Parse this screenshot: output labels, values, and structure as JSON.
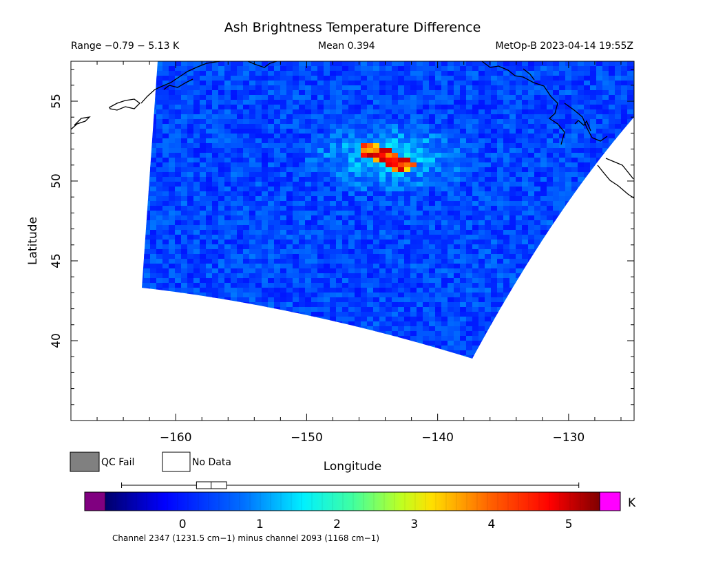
{
  "header": {
    "title": "Ash Brightness Temperature Difference",
    "range": "Range −0.79 − 5.13 K",
    "mean": "Mean 0.394",
    "satellite_time": "MetOp-B 2023-04-14 19:55Z"
  },
  "chart_data": {
    "type": "heatmap",
    "title": "Ash Brightness Temperature Difference",
    "xlabel": "Longitude",
    "ylabel": "Latitude",
    "xlim": [
      -168,
      -125
    ],
    "ylim": [
      35,
      57.5
    ],
    "x_ticks": [
      -160,
      -150,
      -140,
      -130
    ],
    "x_tick_labels": [
      "−160",
      "−150",
      "−140",
      "−130"
    ],
    "y_ticks": [
      40,
      45,
      50,
      55
    ],
    "y_tick_labels": [
      "40",
      "45",
      "50",
      "55"
    ],
    "value_range": [
      -0.79,
      5.13
    ],
    "mean": 0.394,
    "units": "K",
    "colorscale": "rainbow",
    "colorbar": {
      "min": -1.0,
      "max": 5.4,
      "ticks": [
        0,
        1,
        2,
        3,
        4,
        5
      ],
      "tick_labels": [
        "0",
        "1",
        "2",
        "3",
        "4",
        "5"
      ],
      "unit_label": "K",
      "underflow_color": "#800080",
      "overflow_color": "#ff00ff"
    },
    "boxplot": {
      "min": -0.79,
      "q1": 0.18,
      "median": 0.37,
      "q3": 0.57,
      "max": 5.13
    },
    "hotspot": {
      "lon_range": [
        -145.5,
        -142.5
      ],
      "lat_range": [
        50.8,
        52.5
      ],
      "peak": 5.13
    },
    "footer": "Channel 2347 (1231.5 cm−1) minus channel 2093 (1168 cm−1)",
    "legend": [
      {
        "label": "QC Fail",
        "color": "#808080"
      },
      {
        "label": "No Data",
        "color": "#ffffff"
      }
    ]
  }
}
